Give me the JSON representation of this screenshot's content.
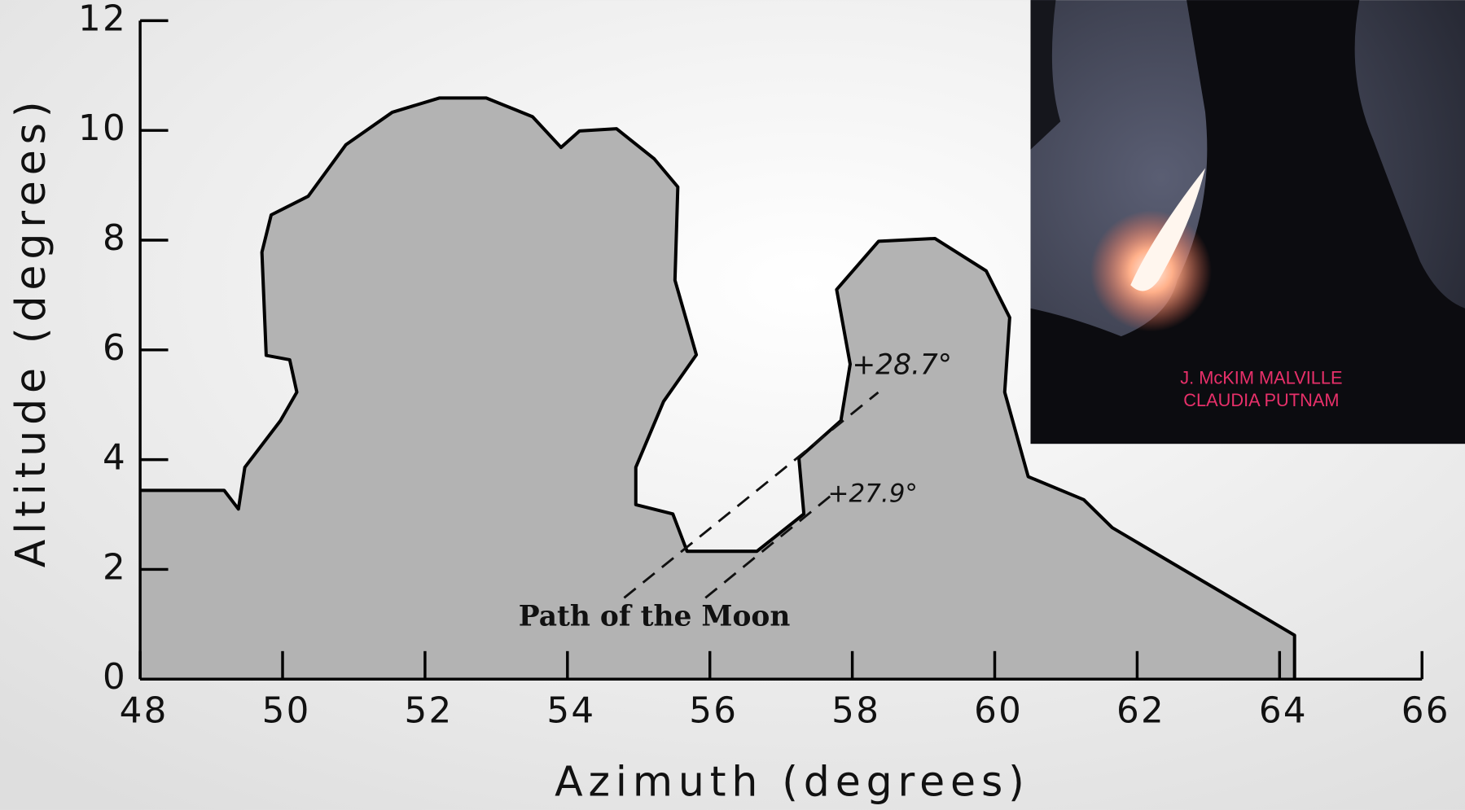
{
  "chart_data": {
    "type": "area",
    "x": [
      48,
      49.18,
      49.38,
      49.47,
      49.97,
      50.2,
      50.1,
      49.77,
      49.71,
      49.84,
      50.36,
      50.89,
      51.54,
      52.2,
      52.86,
      53.51,
      53.91,
      54.17,
      54.69,
      55.22,
      55.55,
      55.51,
      55.81,
      55.35,
      54.96,
      54.96,
      55.48,
      55.68,
      56.66,
      57.32,
      57.25,
      57.84,
      57.97,
      57.78,
      58.37,
      59.16,
      59.88,
      60.21,
      60.14,
      60.47,
      61.25,
      61.65,
      64.21,
      64.21
    ],
    "values": [
      3.44,
      3.44,
      3.1,
      3.86,
      4.71,
      5.23,
      5.82,
      5.9,
      7.78,
      8.46,
      8.8,
      9.74,
      10.33,
      10.59,
      10.59,
      10.25,
      9.69,
      9.99,
      10.03,
      9.48,
      8.97,
      7.27,
      5.91,
      5.06,
      3.86,
      3.18,
      3.01,
      2.33,
      2.33,
      3.01,
      4.03,
      4.71,
      5.74,
      7.1,
      7.98,
      8.03,
      7.44,
      6.59,
      5.23,
      3.69,
      3.27,
      2.76,
      0.8,
      0
    ],
    "color": "#b3b3b3",
    "xlabel": "Azimuth  (degrees)",
    "ylabel": "Altitude  (degrees)",
    "xlim": [
      48,
      66
    ],
    "ylim": [
      0,
      12
    ],
    "xticks": [
      48,
      50,
      52,
      54,
      56,
      58,
      60,
      62,
      64,
      66
    ],
    "yticks": [
      0,
      2,
      4,
      6,
      8,
      10,
      12
    ],
    "annotations": [
      "+28.7°",
      "+27.9°",
      "Path of the Moon"
    ],
    "inset_credits": [
      "J. McKIM MALVILLE",
      "CLAUDIA PUTNAM"
    ]
  }
}
